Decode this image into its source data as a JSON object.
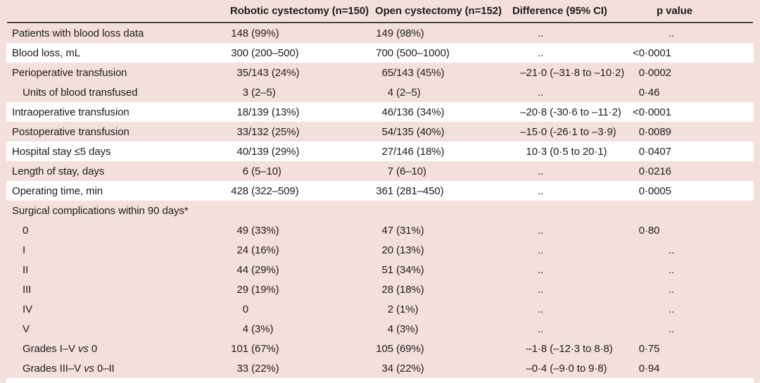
{
  "colors": {
    "stripe_pink": "#f3e0dd",
    "stripe_white": "#ffffff",
    "header_rule": "#4a4646",
    "text": "#1f1c1c"
  },
  "table": {
    "columns": [
      "",
      "Robotic cystectomy (n=150)",
      "Open cystectomy (n=152)",
      "Difference (95% CI)",
      "p value"
    ],
    "rows": [
      {
        "label": "Patients with blood loss data",
        "indent": false,
        "section": false,
        "shade": "pink",
        "values": [
          "148 (99%)",
          "149 (98%)",
          "..",
          ".."
        ]
      },
      {
        "label": "Blood loss, mL",
        "indent": false,
        "section": false,
        "shade": "white",
        "values": [
          "300 (200–500)",
          "700 (500–1000)",
          "..",
          "<0·0001"
        ]
      },
      {
        "label": "Perioperative transfusion",
        "indent": false,
        "section": false,
        "shade": "pink",
        "values": [
          "35/143 (24%)",
          "65/143 (45%)",
          "–21·0 (–31·8 to –10·2)",
          "0·0002"
        ]
      },
      {
        "label": "Units of blood transfused",
        "indent": true,
        "section": false,
        "shade": "pink",
        "values": [
          "3 (2–5)",
          "4 (2–5)",
          "..",
          "0·46"
        ]
      },
      {
        "label": "Intraoperative transfusion",
        "indent": false,
        "section": false,
        "shade": "white",
        "values": [
          "18/139 (13%)",
          "46/136 (34%)",
          "–20·8 (-30·6 to –11·2)",
          "<0·0001"
        ]
      },
      {
        "label": "Postoperative transfusion",
        "indent": false,
        "section": false,
        "shade": "pink",
        "values": [
          "33/132 (25%)",
          "54/135 (40%)",
          "–15·0 (-26·1 to –3·9)",
          "0·0089"
        ]
      },
      {
        "label": "Hospital stay ≤5 days",
        "indent": false,
        "section": false,
        "shade": "white",
        "values": [
          "40/139 (29%)",
          "27/146 (18%)",
          "10·3 (0·5 to 20·1)",
          "0·0407"
        ]
      },
      {
        "label": "Length of stay, days",
        "indent": false,
        "section": false,
        "shade": "pink",
        "values": [
          "6 (5–10)",
          "7 (6–10)",
          "..",
          "0·0216"
        ]
      },
      {
        "label": "Operating time, min",
        "indent": false,
        "section": false,
        "shade": "white",
        "values": [
          "428 (322–509)",
          "361 (281–450)",
          "..",
          "0·0005"
        ]
      },
      {
        "label": "Surgical complications within 90 days*",
        "indent": false,
        "section": true,
        "shade": "pink",
        "values": [
          "",
          "",
          "",
          ""
        ]
      },
      {
        "label": "0",
        "indent": true,
        "section": false,
        "shade": "pink",
        "values": [
          "49 (33%)",
          "47 (31%)",
          "..",
          "0·80"
        ]
      },
      {
        "label": "I",
        "indent": true,
        "section": false,
        "shade": "pink",
        "values": [
          "24 (16%)",
          "20 (13%)",
          "..",
          ".."
        ]
      },
      {
        "label": "II",
        "indent": true,
        "section": false,
        "shade": "pink",
        "values": [
          "44 (29%)",
          "51 (34%)",
          "..",
          ".."
        ]
      },
      {
        "label": "III",
        "indent": true,
        "section": false,
        "shade": "pink",
        "values": [
          "29 (19%)",
          "28 (18%)",
          "..",
          ".."
        ]
      },
      {
        "label": "IV",
        "indent": true,
        "section": false,
        "shade": "pink",
        "values": [
          "0",
          "2 (1%)",
          "..",
          ".."
        ]
      },
      {
        "label": "V",
        "indent": true,
        "section": false,
        "shade": "pink",
        "values": [
          "4 (3%)",
          "4 (3%)",
          "..",
          ".."
        ]
      },
      {
        "label": "Grades I–V vs 0",
        "indent": true,
        "section": false,
        "shade": "pink",
        "values": [
          "101 (67%)",
          "105 (69%)",
          "–1·8 (–12·3 to 8·8)",
          "0·75"
        ]
      },
      {
        "label": "Grades III–V vs 0–II",
        "indent": true,
        "section": false,
        "shade": "pink",
        "values": [
          "33 (22%)",
          "34 (22%)",
          "–0·4 (–9·0 to 9·8)",
          "0·94"
        ]
      }
    ]
  }
}
